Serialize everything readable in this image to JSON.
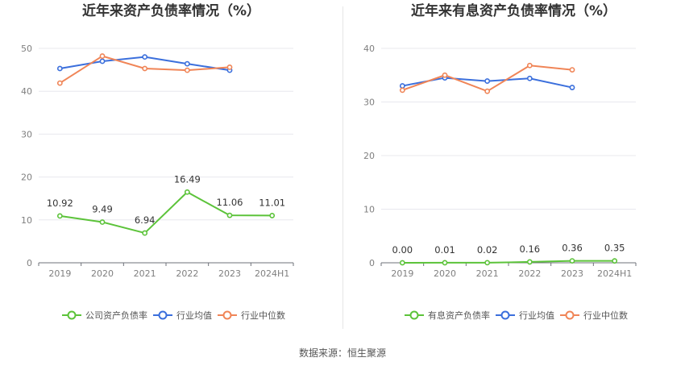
{
  "source": "数据来源：恒生聚源",
  "chart_data": [
    {
      "type": "line",
      "title": "近年来资产负债率情况（%）",
      "categories": [
        "2019",
        "2020",
        "2021",
        "2022",
        "2023",
        "2024H1"
      ],
      "ylim": [
        0,
        50
      ],
      "yticks": [
        0,
        10,
        20,
        30,
        40,
        50
      ],
      "grid": true,
      "legend_position": "bottom",
      "series": [
        {
          "name": "公司资产负债率",
          "color": "#5cc33a",
          "values": [
            10.92,
            9.49,
            6.94,
            16.49,
            11.06,
            11.01
          ],
          "labels": [
            "10.92",
            "9.49",
            "6.94",
            "16.49",
            "11.06",
            "11.01"
          ]
        },
        {
          "name": "行业均值",
          "color": "#3b6fdc",
          "values": [
            45.3,
            47.0,
            48.0,
            46.4,
            44.9,
            null
          ]
        },
        {
          "name": "行业中位数",
          "color": "#f08557",
          "values": [
            41.9,
            48.2,
            45.3,
            44.9,
            45.6,
            null
          ]
        }
      ]
    },
    {
      "type": "line",
      "title": "近年来有息资产负债率情况（%）",
      "categories": [
        "2019",
        "2020",
        "2021",
        "2022",
        "2023",
        "2024H1"
      ],
      "ylim": [
        0,
        40
      ],
      "yticks": [
        0,
        10,
        20,
        30,
        40
      ],
      "grid": true,
      "legend_position": "bottom",
      "series": [
        {
          "name": "有息资产负债率",
          "color": "#5cc33a",
          "values": [
            0.0,
            0.01,
            0.02,
            0.16,
            0.36,
            0.35
          ],
          "labels": [
            "0.00",
            "0.01",
            "0.02",
            "0.16",
            "0.36",
            "0.35"
          ]
        },
        {
          "name": "行业均值",
          "color": "#3b6fdc",
          "values": [
            33.0,
            34.5,
            33.9,
            34.4,
            32.7,
            null
          ]
        },
        {
          "name": "行业中位数",
          "color": "#f08557",
          "values": [
            32.2,
            35.0,
            32.0,
            36.8,
            36.0,
            null
          ]
        }
      ]
    }
  ]
}
